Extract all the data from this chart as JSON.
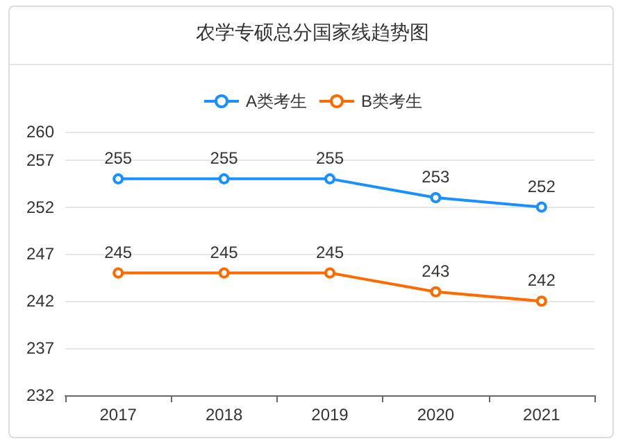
{
  "chart_data": {
    "type": "line",
    "title": "农学专硕总分国家线趋势图",
    "categories": [
      "2017",
      "2018",
      "2019",
      "2020",
      "2021"
    ],
    "series": [
      {
        "name": "A类考生",
        "color": "#1890ff",
        "values": [
          255,
          255,
          255,
          253,
          252
        ]
      },
      {
        "name": "B类考生",
        "color": "#ff6a00",
        "values": [
          245,
          245,
          245,
          243,
          242
        ]
      }
    ],
    "ylim": [
      232,
      260
    ],
    "yticks": [
      232,
      237,
      242,
      247,
      252,
      257,
      260
    ],
    "grid": "y",
    "legend": "top",
    "marker": "circle",
    "line_style": "solid",
    "data_labels": true
  }
}
